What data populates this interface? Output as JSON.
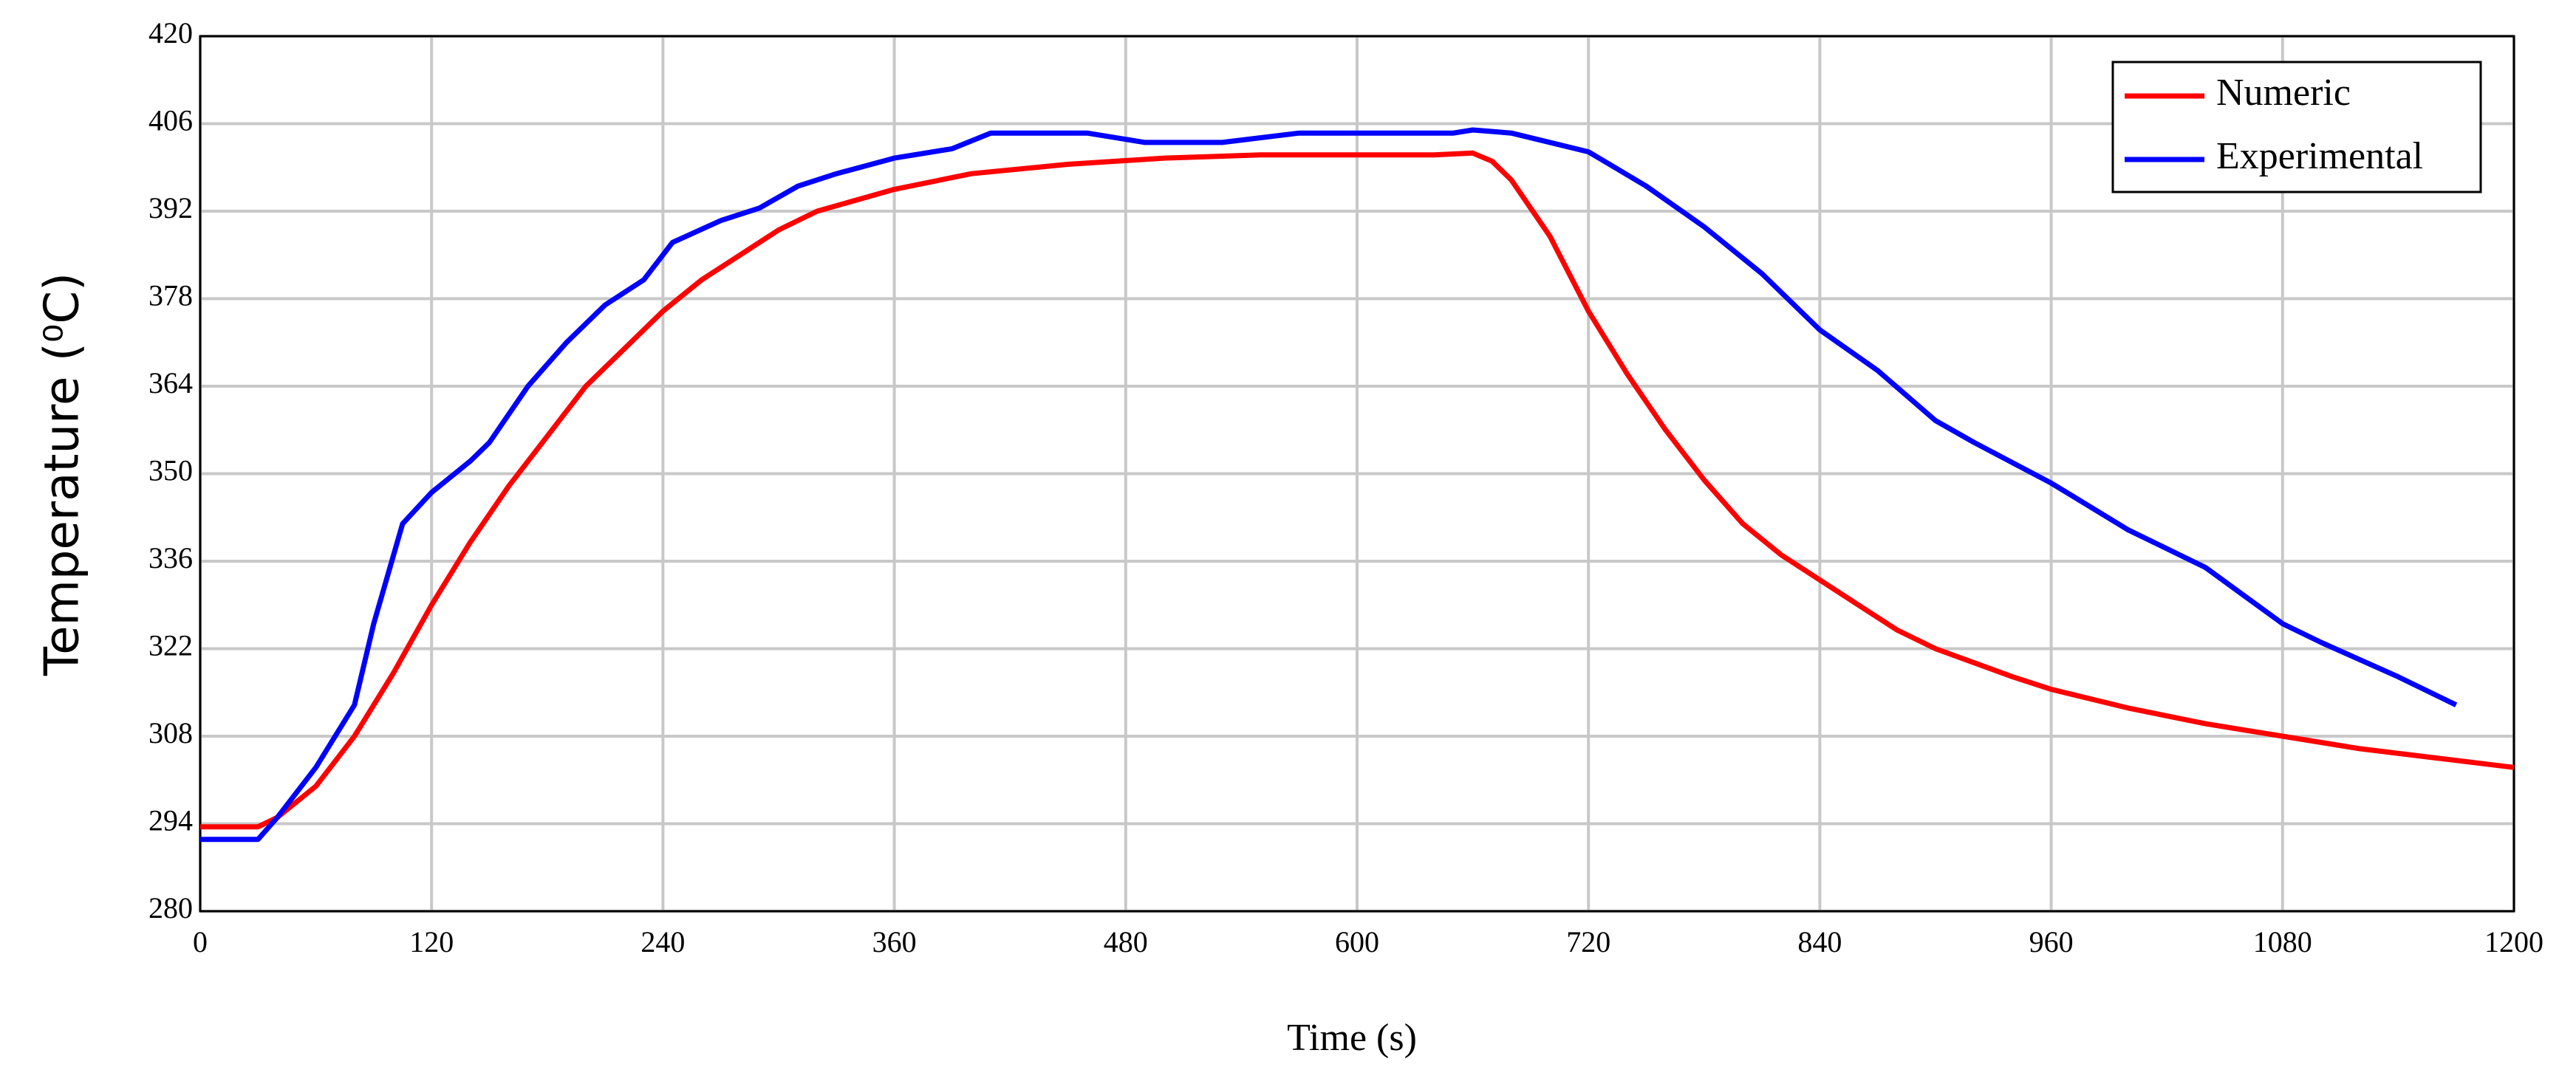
{
  "chart_data": {
    "type": "line",
    "xlabel": "Time (s)",
    "ylabel": "Temperature (⁰C)",
    "xlim": [
      0,
      1200
    ],
    "xticks": [
      0,
      120,
      240,
      360,
      480,
      600,
      720,
      840,
      960,
      1080,
      1200
    ],
    "ylim": [
      280,
      420
    ],
    "yticks": [
      280,
      294,
      308,
      322,
      336,
      350,
      364,
      378,
      392,
      406,
      420
    ],
    "grid": true,
    "legend": "upper right",
    "series": [
      {
        "name": "Numeric",
        "color": "#ff0000",
        "x": [
          0,
          30,
          40,
          60,
          80,
          100,
          120,
          140,
          160,
          180,
          200,
          220,
          240,
          260,
          280,
          300,
          320,
          360,
          400,
          450,
          500,
          550,
          600,
          640,
          660,
          670,
          680,
          700,
          720,
          740,
          760,
          780,
          800,
          820,
          840,
          860,
          880,
          900,
          940,
          960,
          1000,
          1040,
          1080,
          1120,
          1160,
          1200
        ],
        "values": [
          293.5,
          293.5,
          295,
          300,
          308,
          318,
          329,
          339,
          348,
          356,
          364,
          370,
          376,
          381,
          385,
          389,
          392,
          395.5,
          398,
          399.5,
          400.5,
          401,
          401,
          401,
          401.3,
          400,
          397,
          388,
          376,
          366,
          357,
          349,
          342,
          337,
          333,
          329,
          325,
          322,
          317.5,
          315.5,
          312.5,
          310,
          308,
          306,
          304.5,
          303
        ]
      },
      {
        "name": "Experimental",
        "color": "#0000ff",
        "x": [
          0,
          30,
          40,
          60,
          80,
          90,
          105,
          120,
          140,
          150,
          170,
          190,
          210,
          230,
          245,
          270,
          290,
          310,
          330,
          360,
          390,
          410,
          460,
          490,
          530,
          570,
          650,
          660,
          680,
          720,
          750,
          780,
          810,
          840,
          870,
          900,
          920,
          960,
          1000,
          1040,
          1080,
          1100,
          1140,
          1170
        ],
        "values": [
          291.5,
          291.5,
          295,
          303,
          313,
          326,
          342,
          347,
          352,
          355,
          364,
          371,
          377,
          381,
          387,
          390.5,
          392.5,
          396,
          398,
          400.5,
          402,
          404.5,
          404.5,
          403,
          403,
          404.5,
          404.5,
          405,
          404.5,
          401.5,
          396,
          389.5,
          382,
          373,
          366.5,
          358.5,
          355,
          348.5,
          341,
          335,
          326,
          323,
          317.5,
          313
        ]
      }
    ]
  }
}
